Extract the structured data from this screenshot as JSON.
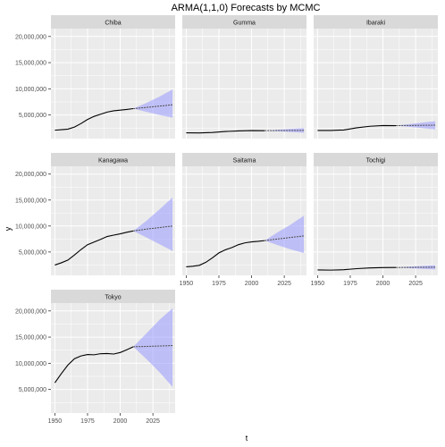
{
  "chart_data": {
    "type": "line",
    "title": "ARMA(1,1,0) Forecasts by MCMC",
    "xlabel": "t",
    "ylabel": "y",
    "xlim": [
      1947,
      2042
    ],
    "ylim": [
      500000,
      21500000
    ],
    "x_ticks": [
      1950,
      1975,
      2000,
      2025
    ],
    "x_tick_labels": [
      "1950",
      "1975",
      "2000",
      "2025"
    ],
    "y_ticks": [
      5000000,
      10000000,
      15000000,
      20000000
    ],
    "y_tick_labels": [
      "5,000,000",
      "10,000,000",
      "15,000,000",
      "20,000,000"
    ],
    "grid": true,
    "facet_layout": {
      "ncol": 3,
      "nrow": 3
    },
    "forecast_start": 2010,
    "colors": {
      "line": "#000000",
      "forecast_line": "#4d4d4d",
      "band": "#9999ff",
      "panel_bg": "#ebebeb",
      "strip_bg": "#d9d9d9",
      "grid": "#ffffff"
    },
    "panels": [
      {
        "name": "Chiba",
        "observed": {
          "x": [
            1950,
            1955,
            1960,
            1965,
            1970,
            1975,
            1980,
            1985,
            1990,
            1995,
            2000,
            2005,
            2010
          ],
          "y": [
            2100000,
            2200000,
            2300000,
            2700000,
            3370000,
            4150000,
            4740000,
            5150000,
            5560000,
            5800000,
            5930000,
            6060000,
            6220000
          ]
        },
        "forecast": {
          "x": [
            2010,
            2020,
            2030,
            2040
          ],
          "y": [
            6220000,
            6450000,
            6700000,
            6950000
          ]
        },
        "band": {
          "x": [
            2010,
            2020,
            2030,
            2040
          ],
          "lower": [
            6220000,
            5600000,
            5000000,
            4500000
          ],
          "upper": [
            6220000,
            7300000,
            8500000,
            9900000
          ]
        }
      },
      {
        "name": "Gumma",
        "observed": {
          "x": [
            1950,
            1960,
            1970,
            1980,
            1990,
            2000,
            2010
          ],
          "y": [
            1600000,
            1580000,
            1660000,
            1850000,
            1970000,
            2020000,
            2010000
          ]
        },
        "forecast": {
          "x": [
            2010,
            2020,
            2030,
            2040
          ],
          "y": [
            2010000,
            2030000,
            2050000,
            2070000
          ]
        },
        "band": {
          "x": [
            2010,
            2020,
            2030,
            2040
          ],
          "lower": [
            2010000,
            1880000,
            1750000,
            1600000
          ],
          "upper": [
            2010000,
            2180000,
            2350000,
            2500000
          ]
        }
      },
      {
        "name": "Ibaraki",
        "observed": {
          "x": [
            1950,
            1960,
            1970,
            1980,
            1990,
            2000,
            2010
          ],
          "y": [
            2040000,
            2050000,
            2140000,
            2560000,
            2850000,
            2990000,
            2970000
          ]
        },
        "forecast": {
          "x": [
            2010,
            2020,
            2030,
            2040
          ],
          "y": [
            2970000,
            3000000,
            3030000,
            3060000
          ]
        },
        "band": {
          "x": [
            2010,
            2020,
            2030,
            2040
          ],
          "lower": [
            2970000,
            2750000,
            2500000,
            2250000
          ],
          "upper": [
            2970000,
            3250000,
            3550000,
            3800000
          ]
        }
      },
      {
        "name": "Kanagawa",
        "observed": {
          "x": [
            1950,
            1955,
            1960,
            1965,
            1970,
            1975,
            1980,
            1985,
            1990,
            1995,
            2000,
            2005,
            2010
          ],
          "y": [
            2490000,
            2920000,
            3440000,
            4430000,
            5470000,
            6400000,
            6920000,
            7430000,
            7980000,
            8250000,
            8490000,
            8790000,
            9050000
          ]
        },
        "forecast": {
          "x": [
            2010,
            2020,
            2030,
            2040
          ],
          "y": [
            9050000,
            9400000,
            9700000,
            10000000
          ]
        },
        "band": {
          "x": [
            2010,
            2020,
            2030,
            2040
          ],
          "lower": [
            9050000,
            7800000,
            6500000,
            5200000
          ],
          "upper": [
            9050000,
            11000000,
            13200000,
            15500000
          ]
        }
      },
      {
        "name": "Saitama",
        "observed": {
          "x": [
            1950,
            1955,
            1960,
            1965,
            1970,
            1975,
            1980,
            1985,
            1990,
            1995,
            2000,
            2005,
            2010
          ],
          "y": [
            2150000,
            2260000,
            2430000,
            3010000,
            3870000,
            4820000,
            5420000,
            5860000,
            6410000,
            6760000,
            6940000,
            7050000,
            7190000
          ]
        },
        "forecast": {
          "x": [
            2010,
            2020,
            2030,
            2040
          ],
          "y": [
            7190000,
            7500000,
            7800000,
            8100000
          ]
        },
        "band": {
          "x": [
            2010,
            2020,
            2030,
            2040
          ],
          "lower": [
            7190000,
            6300000,
            5500000,
            4800000
          ],
          "upper": [
            7190000,
            8800000,
            10300000,
            12000000
          ]
        }
      },
      {
        "name": "Tochigi",
        "observed": {
          "x": [
            1950,
            1960,
            1970,
            1980,
            1990,
            2000,
            2010
          ],
          "y": [
            1550000,
            1510000,
            1580000,
            1790000,
            1930000,
            2000000,
            2010000
          ]
        },
        "forecast": {
          "x": [
            2010,
            2020,
            2030,
            2040
          ],
          "y": [
            2010000,
            2030000,
            2050000,
            2070000
          ]
        },
        "band": {
          "x": [
            2010,
            2020,
            2030,
            2040
          ],
          "lower": [
            2010000,
            1880000,
            1760000,
            1650000
          ],
          "upper": [
            2010000,
            2170000,
            2320000,
            2450000
          ]
        }
      },
      {
        "name": "Tokyo",
        "observed": {
          "x": [
            1950,
            1955,
            1960,
            1965,
            1970,
            1975,
            1980,
            1985,
            1990,
            1995,
            2000,
            2005,
            2010
          ],
          "y": [
            6280000,
            8040000,
            9680000,
            10870000,
            11410000,
            11670000,
            11620000,
            11830000,
            11860000,
            11770000,
            12060000,
            12580000,
            13160000
          ]
        },
        "forecast": {
          "x": [
            2010,
            2020,
            2030,
            2040
          ],
          "y": [
            13160000,
            13220000,
            13300000,
            13380000
          ]
        },
        "band": {
          "x": [
            2010,
            2020,
            2030,
            2040
          ],
          "lower": [
            13160000,
            10800000,
            8300000,
            5500000
          ],
          "upper": [
            13160000,
            15700000,
            18300000,
            20500000
          ]
        }
      }
    ]
  }
}
